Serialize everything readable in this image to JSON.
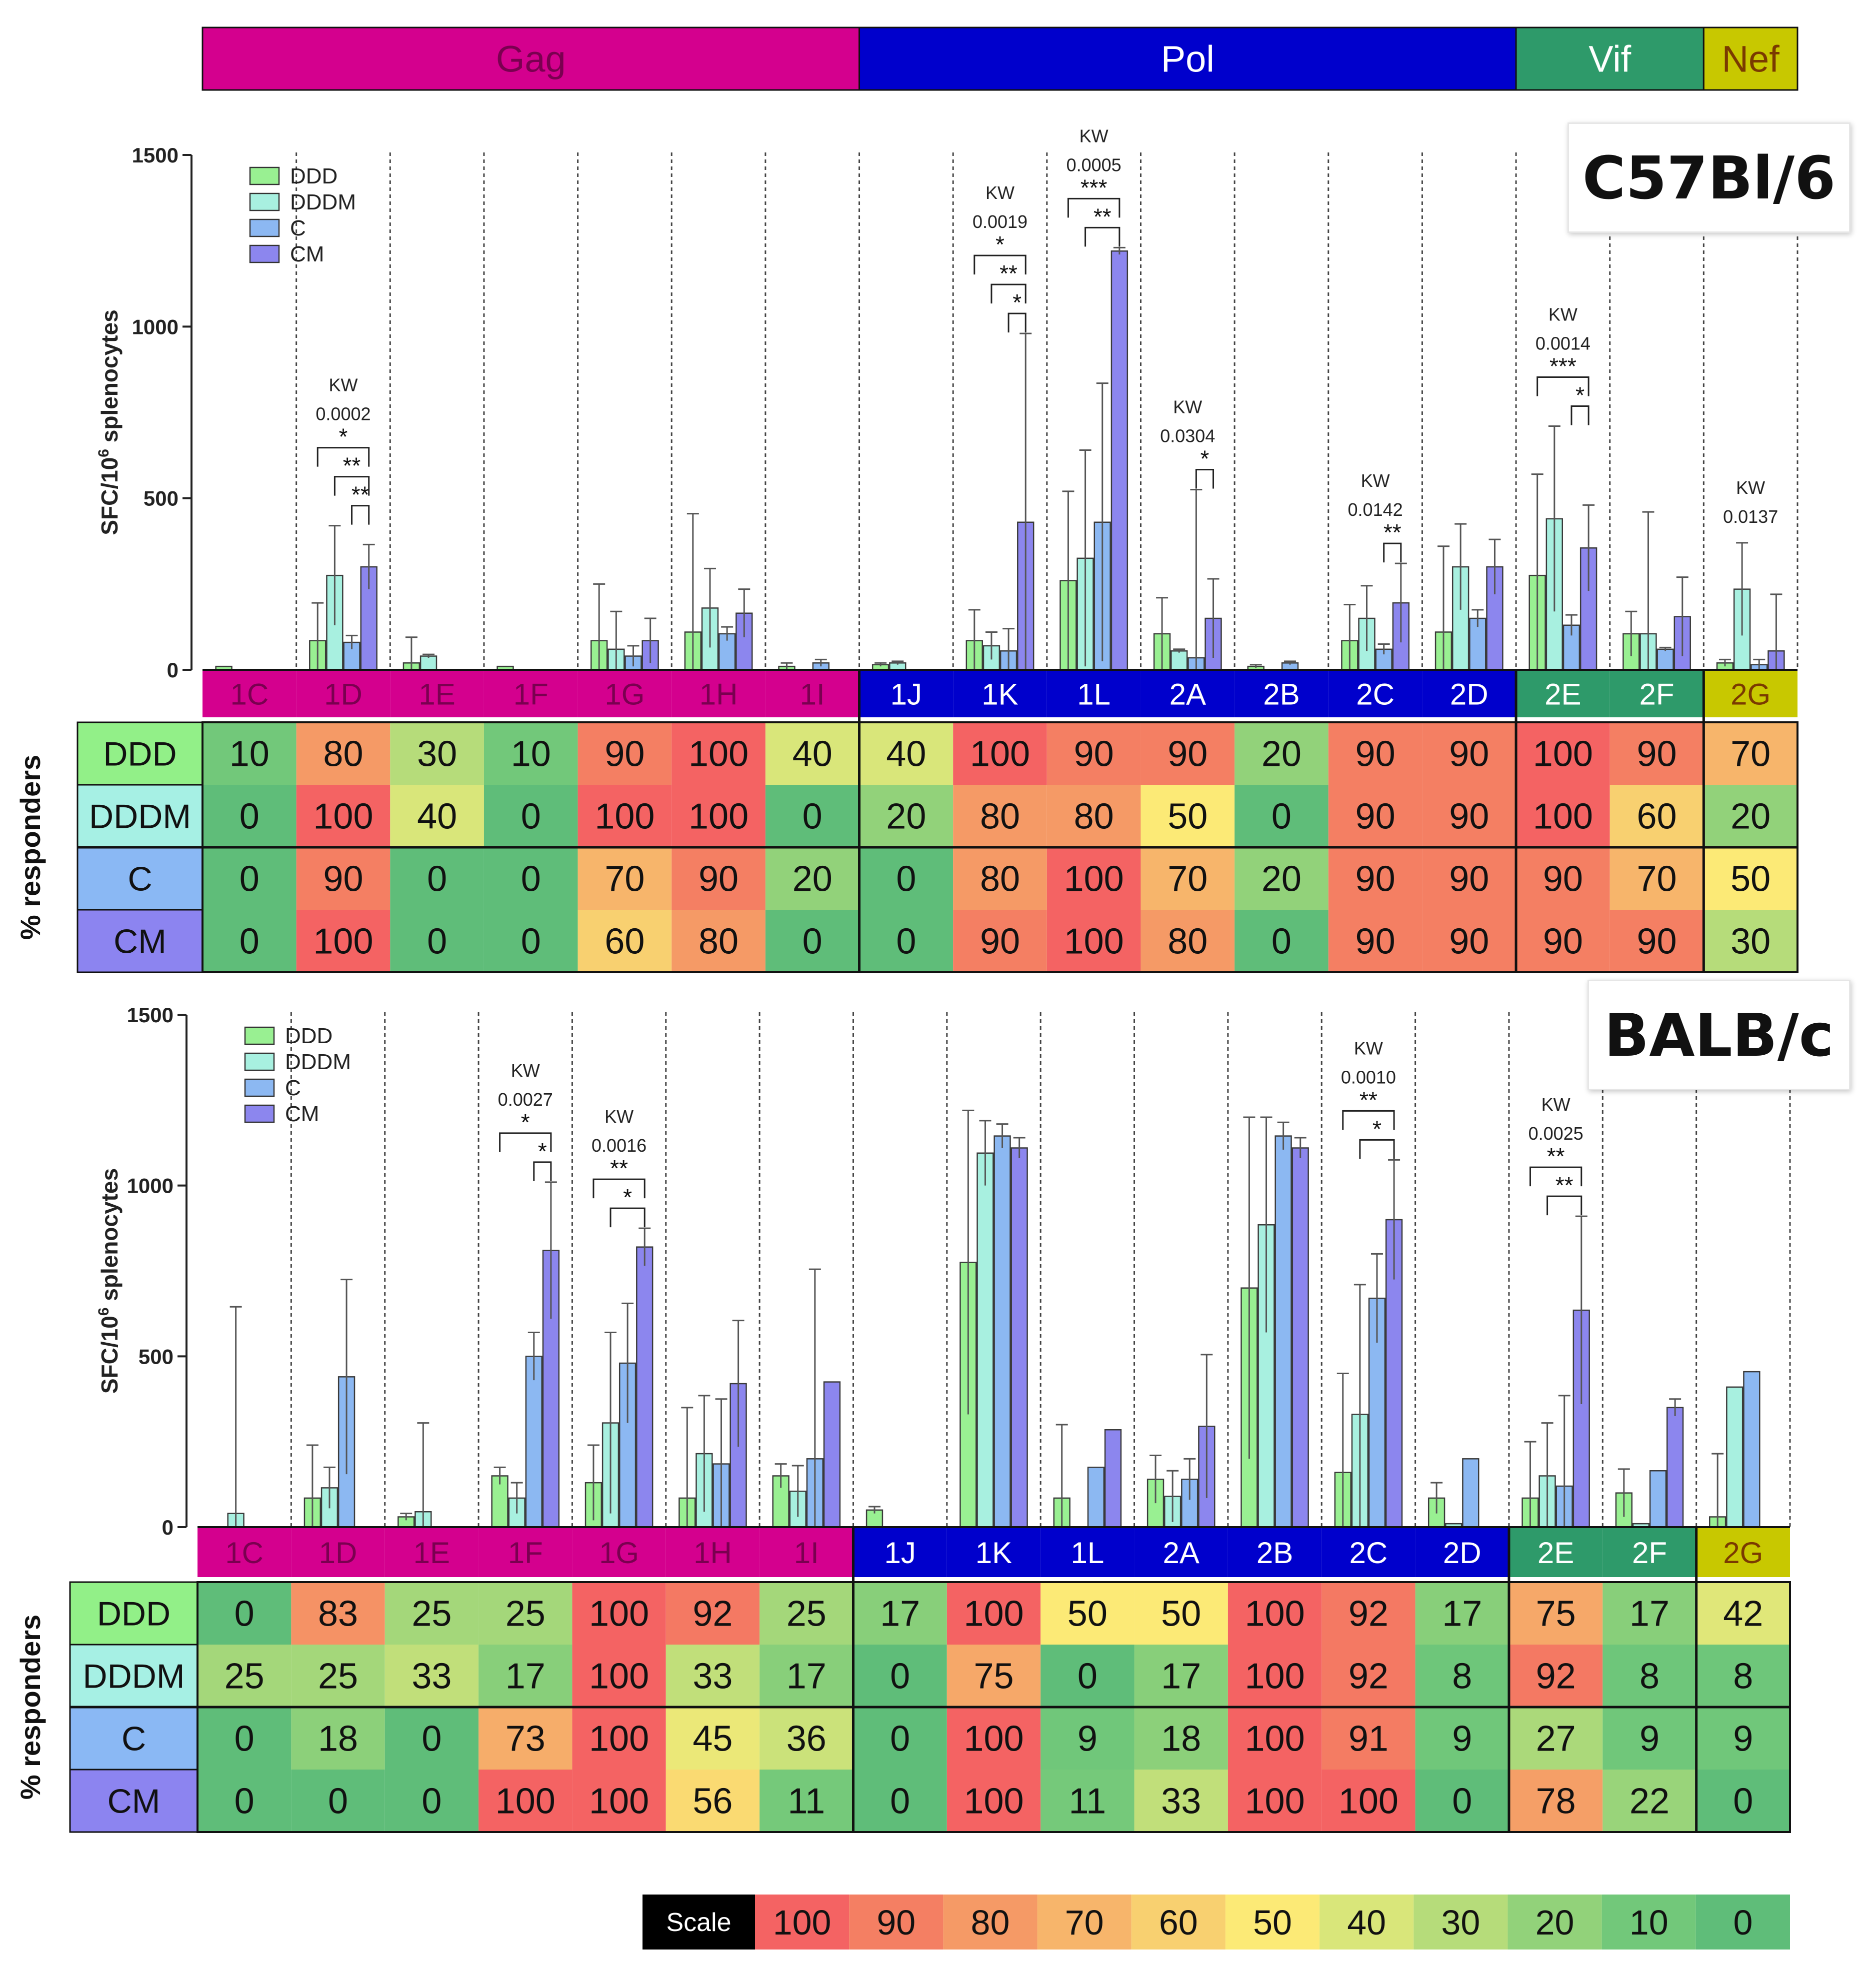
{
  "regions": [
    {
      "name": "Gag",
      "color": "#d4008e",
      "text_color": "#7a0050"
    },
    {
      "name": "Pol",
      "color": "#0000cc",
      "text_color": "#ffffff"
    },
    {
      "name": "Vif",
      "color": "#2e9a6a",
      "text_color": "#ffffff"
    },
    {
      "name": "Nef",
      "color": "#c8c800",
      "text_color": "#7a3a00"
    }
  ],
  "region_spans": {
    "Gag": [
      0,
      6
    ],
    "Pol": [
      7,
      13
    ],
    "Vif": [
      14,
      15
    ],
    "Nef": [
      16,
      16
    ]
  },
  "groups": [
    {
      "name": "DDD",
      "color": "#99f092"
    },
    {
      "name": "DDDM",
      "color": "#a8f0e0"
    },
    {
      "name": "C",
      "color": "#8cb8f2"
    },
    {
      "name": "CM",
      "color": "#8c86ee"
    }
  ],
  "heat_row_colors": [
    "#92f088",
    "#a6f0e4",
    "#8ab8f4",
    "#8c84f0"
  ],
  "row_header": "% responders",
  "scale": {
    "label": "Scale",
    "values": [
      100,
      90,
      80,
      70,
      60,
      50,
      40,
      30,
      20,
      10,
      0
    ],
    "colors": [
      "#f46363",
      "#f47f63",
      "#f59a66",
      "#f7b56b",
      "#f8d070",
      "#fcea76",
      "#d9e67a",
      "#b6dc7a",
      "#92d27a",
      "#72c87a",
      "#5fbd79"
    ]
  },
  "chart_data": [
    {
      "type": "bar",
      "title": "C57Bl/6",
      "xlabel": "",
      "ylabel": "SFC/10^6 splenocytes",
      "ylabel_main": "SFC/10",
      "ylabel_sup": "6",
      "ylabel_tail": " splenocytes",
      "ylim": [
        0,
        1500
      ],
      "yticks": [
        0,
        500,
        1000,
        1500
      ],
      "categories": [
        "1C",
        "1D",
        "1E",
        "1F",
        "1G",
        "1H",
        "1I",
        "1J",
        "1K",
        "1L",
        "2A",
        "2B",
        "2C",
        "2D",
        "2E",
        "2F",
        "2G"
      ],
      "category_region": [
        "Gag",
        "Gag",
        "Gag",
        "Gag",
        "Gag",
        "Gag",
        "Gag",
        "Pol",
        "Pol",
        "Pol",
        "Pol",
        "Pol",
        "Pol",
        "Pol",
        "Vif",
        "Vif",
        "Nef"
      ],
      "series": [
        {
          "name": "DDD",
          "values": [
            10,
            85,
            20,
            10,
            85,
            110,
            10,
            15,
            85,
            260,
            105,
            10,
            85,
            110,
            275,
            105,
            20
          ],
          "error_high": [
            0,
            195,
            95,
            0,
            250,
            455,
            20,
            20,
            175,
            520,
            210,
            15,
            190,
            360,
            570,
            170,
            30
          ]
        },
        {
          "name": "DDDM",
          "values": [
            0,
            275,
            40,
            0,
            60,
            180,
            0,
            20,
            70,
            325,
            55,
            0,
            150,
            300,
            440,
            105,
            235
          ],
          "error_high": [
            0,
            420,
            45,
            0,
            170,
            295,
            0,
            25,
            110,
            640,
            60,
            0,
            245,
            425,
            710,
            460,
            370
          ]
        },
        {
          "name": "C",
          "values": [
            0,
            80,
            0,
            0,
            40,
            105,
            20,
            0,
            55,
            430,
            35,
            20,
            60,
            150,
            130,
            60,
            15
          ],
          "error_high": [
            0,
            100,
            0,
            0,
            70,
            125,
            30,
            0,
            120,
            835,
            525,
            25,
            75,
            175,
            160,
            65,
            30
          ]
        },
        {
          "name": "CM",
          "values": [
            0,
            300,
            0,
            0,
            85,
            165,
            0,
            0,
            430,
            1220,
            150,
            0,
            195,
            300,
            355,
            155,
            55
          ],
          "error_high": [
            0,
            365,
            0,
            0,
            150,
            235,
            0,
            0,
            980,
            1230,
            265,
            0,
            310,
            380,
            480,
            270,
            220
          ]
        }
      ],
      "annotations": [
        {
          "category": "1D",
          "kw_label": "KW",
          "kw_value": "0.0002"
        },
        {
          "category": "1K",
          "kw_label": "KW",
          "kw_value": "0.0019"
        },
        {
          "category": "1L",
          "kw_label": "KW",
          "kw_value": "0.0005"
        },
        {
          "category": "2A",
          "kw_label": "KW",
          "kw_value": "0.0304"
        },
        {
          "category": "2C",
          "kw_label": "KW",
          "kw_value": "0.0142"
        },
        {
          "category": "2E",
          "kw_label": "KW",
          "kw_value": "0.0014"
        },
        {
          "category": "2G",
          "kw_label": "KW",
          "kw_value": "0.0137"
        }
      ],
      "comparisons": [
        {
          "category": "1D",
          "from": "DDD",
          "to": "CM",
          "stars": "*"
        },
        {
          "category": "1D",
          "from": "DDDM",
          "to": "CM",
          "stars": "**"
        },
        {
          "category": "1D",
          "from": "C",
          "to": "CM",
          "stars": "**"
        },
        {
          "category": "1K",
          "from": "DDD",
          "to": "CM",
          "stars": "*"
        },
        {
          "category": "1K",
          "from": "DDDM",
          "to": "CM",
          "stars": "**"
        },
        {
          "category": "1K",
          "from": "C",
          "to": "CM",
          "stars": "*"
        },
        {
          "category": "1L",
          "from": "DDD",
          "to": "CM",
          "stars": "***"
        },
        {
          "category": "1L",
          "from": "DDDM",
          "to": "CM",
          "stars": "**"
        },
        {
          "category": "2A",
          "from": "C",
          "to": "CM",
          "stars": "*"
        },
        {
          "category": "2C",
          "from": "C",
          "to": "CM",
          "stars": "**"
        },
        {
          "category": "2E",
          "from": "DDD",
          "to": "CM",
          "stars": "***"
        },
        {
          "category": "2E",
          "from": "C",
          "to": "CM",
          "stars": "*"
        }
      ],
      "responders": {
        "DDD": [
          10,
          80,
          30,
          10,
          90,
          100,
          40,
          40,
          100,
          90,
          90,
          20,
          90,
          90,
          100,
          90,
          70
        ],
        "DDDM": [
          0,
          100,
          40,
          0,
          100,
          100,
          0,
          20,
          80,
          80,
          50,
          0,
          90,
          90,
          100,
          60,
          20
        ],
        "C": [
          0,
          90,
          0,
          0,
          70,
          90,
          20,
          0,
          80,
          100,
          70,
          20,
          90,
          90,
          90,
          70,
          50
        ],
        "CM": [
          0,
          100,
          0,
          0,
          60,
          80,
          0,
          0,
          90,
          100,
          80,
          0,
          90,
          90,
          90,
          90,
          30
        ]
      }
    },
    {
      "type": "bar",
      "title": "BALB/c",
      "xlabel": "",
      "ylabel": "SFC/10^6 splenocytes",
      "ylabel_main": "SFC/10",
      "ylabel_sup": "6",
      "ylabel_tail": " splenocytes",
      "ylim": [
        0,
        1500
      ],
      "yticks": [
        0,
        500,
        1000,
        1500
      ],
      "categories": [
        "1C",
        "1D",
        "1E",
        "1F",
        "1G",
        "1H",
        "1I",
        "1J",
        "1K",
        "1L",
        "2A",
        "2B",
        "2C",
        "2D",
        "2E",
        "2F",
        "2G"
      ],
      "category_region": [
        "Gag",
        "Gag",
        "Gag",
        "Gag",
        "Gag",
        "Gag",
        "Gag",
        "Pol",
        "Pol",
        "Pol",
        "Pol",
        "Pol",
        "Pol",
        "Pol",
        "Vif",
        "Vif",
        "Nef"
      ],
      "series": [
        {
          "name": "DDD",
          "values": [
            0,
            85,
            30,
            150,
            130,
            85,
            150,
            50,
            775,
            85,
            140,
            700,
            160,
            85,
            85,
            100,
            30
          ],
          "error_high": [
            0,
            240,
            40,
            175,
            240,
            350,
            185,
            60,
            1220,
            300,
            210,
            1200,
            450,
            130,
            250,
            170,
            215
          ]
        },
        {
          "name": "DDDM",
          "values": [
            40,
            115,
            45,
            85,
            305,
            215,
            105,
            0,
            1095,
            0,
            90,
            885,
            330,
            10,
            150,
            10,
            410
          ],
          "error_high": [
            645,
            175,
            305,
            130,
            570,
            385,
            180,
            0,
            1190,
            0,
            165,
            1200,
            710,
            10,
            305,
            10,
            410
          ]
        },
        {
          "name": "C",
          "values": [
            0,
            440,
            0,
            500,
            480,
            185,
            200,
            0,
            1145,
            175,
            140,
            1145,
            670,
            200,
            120,
            165,
            455
          ],
          "error_high": [
            0,
            725,
            0,
            570,
            655,
            375,
            755,
            0,
            1180,
            175,
            200,
            1185,
            800,
            200,
            385,
            165,
            455
          ]
        },
        {
          "name": "CM",
          "values": [
            0,
            0,
            0,
            810,
            820,
            420,
            425,
            0,
            1110,
            285,
            295,
            1110,
            900,
            0,
            635,
            350,
            0
          ],
          "error_high": [
            0,
            0,
            0,
            1010,
            875,
            605,
            425,
            0,
            1140,
            285,
            505,
            1140,
            1075,
            0,
            910,
            375,
            0
          ]
        }
      ],
      "annotations": [
        {
          "category": "1F",
          "kw_label": "KW",
          "kw_value": "0.0027"
        },
        {
          "category": "1G",
          "kw_label": "KW",
          "kw_value": "0.0016"
        },
        {
          "category": "2C",
          "kw_label": "KW",
          "kw_value": "0.0010"
        },
        {
          "category": "2E",
          "kw_label": "KW",
          "kw_value": "0.0025"
        }
      ],
      "comparisons": [
        {
          "category": "1F",
          "from": "DDD",
          "to": "CM",
          "stars": "*"
        },
        {
          "category": "1F",
          "from": "C",
          "to": "CM",
          "stars": "*"
        },
        {
          "category": "1G",
          "from": "DDD",
          "to": "CM",
          "stars": "**"
        },
        {
          "category": "1G",
          "from": "DDDM",
          "to": "CM",
          "stars": "*"
        },
        {
          "category": "2C",
          "from": "DDD",
          "to": "CM",
          "stars": "**"
        },
        {
          "category": "2C",
          "from": "DDDM",
          "to": "CM",
          "stars": "*"
        },
        {
          "category": "2E",
          "from": "DDD",
          "to": "CM",
          "stars": "**"
        },
        {
          "category": "2E",
          "from": "DDDM",
          "to": "CM",
          "stars": "**"
        }
      ],
      "responders": {
        "DDD": [
          0,
          83,
          25,
          25,
          100,
          92,
          25,
          17,
          100,
          50,
          50,
          100,
          92,
          17,
          75,
          17,
          42
        ],
        "DDDM": [
          25,
          25,
          33,
          17,
          100,
          33,
          17,
          0,
          75,
          0,
          17,
          100,
          92,
          8,
          92,
          8,
          8
        ],
        "C": [
          0,
          18,
          0,
          73,
          100,
          45,
          36,
          0,
          100,
          9,
          18,
          100,
          91,
          9,
          27,
          9,
          9
        ],
        "CM": [
          0,
          0,
          0,
          100,
          100,
          56,
          11,
          0,
          100,
          11,
          33,
          100,
          100,
          0,
          78,
          22,
          0
        ]
      }
    }
  ]
}
